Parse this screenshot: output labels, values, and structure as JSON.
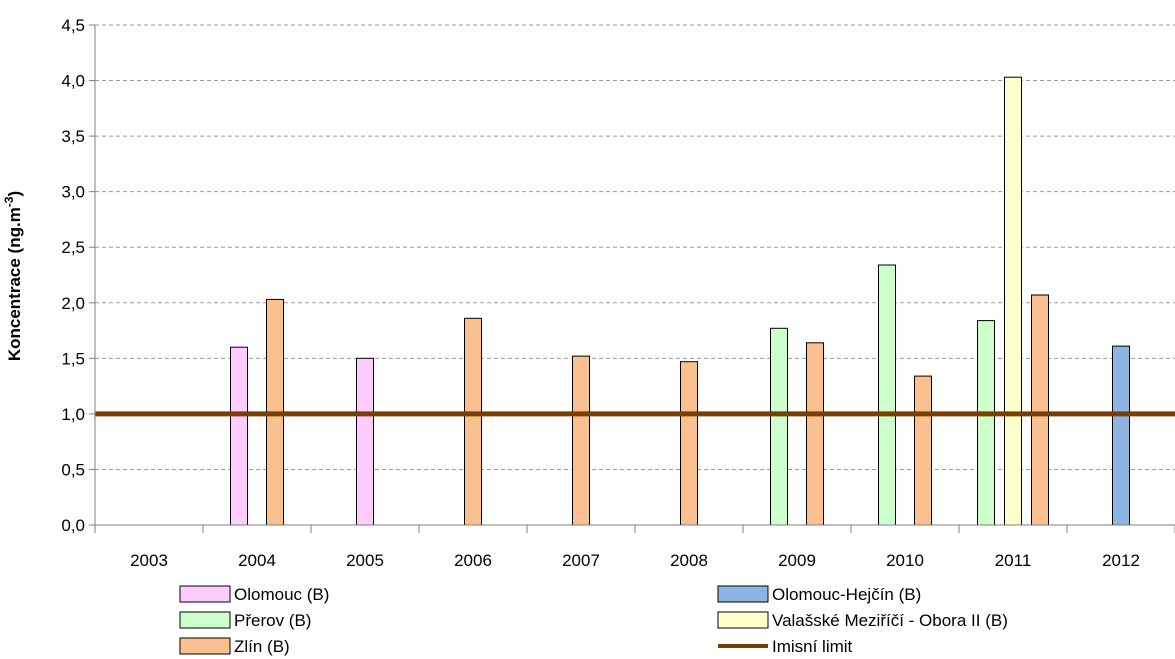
{
  "chart_data": {
    "type": "bar",
    "title": "",
    "xlabel": "",
    "ylabel": "Koncentrace (ng.m",
    "ylabel_sup": "-3",
    "ylabel_close": ")",
    "ylim": [
      0,
      4.5
    ],
    "yticks": [
      0,
      0.5,
      1.0,
      1.5,
      2.0,
      2.5,
      3.0,
      3.5,
      4.0,
      4.5
    ],
    "ytick_labels": [
      "0,0",
      "0,5",
      "1,0",
      "1,5",
      "2,0",
      "2,5",
      "3,0",
      "3,5",
      "4,0",
      "4,5"
    ],
    "grid": "horizontal dashed",
    "legend_position": "bottom",
    "categories": [
      "2003",
      "2004",
      "2005",
      "2006",
      "2007",
      "2008",
      "2009",
      "2010",
      "2011",
      "2012"
    ],
    "series": [
      {
        "name": "Olomouc (B)",
        "color": "#ffccff",
        "values": [
          null,
          1.6,
          1.5,
          null,
          null,
          null,
          null,
          null,
          null,
          null
        ]
      },
      {
        "name": "Olomouc-Hejčín (B)",
        "color": "#8db4e2",
        "values": [
          null,
          null,
          null,
          null,
          null,
          null,
          null,
          null,
          null,
          1.61
        ]
      },
      {
        "name": "Přerov (B)",
        "color": "#ccffcc",
        "values": [
          null,
          null,
          null,
          null,
          null,
          null,
          1.77,
          2.34,
          1.84,
          null
        ]
      },
      {
        "name": "Valašské Meziříčí - Obora II (B)",
        "color": "#ffffcc",
        "values": [
          null,
          null,
          null,
          null,
          null,
          null,
          null,
          null,
          4.03,
          null
        ]
      },
      {
        "name": "Zlín (B)",
        "color": "#fac090",
        "values": [
          null,
          2.03,
          null,
          1.86,
          1.52,
          1.47,
          1.64,
          1.34,
          2.07,
          null
        ]
      }
    ],
    "limit": {
      "name": "Imisní limit",
      "value": 1.0,
      "color": "#7a3e00"
    }
  }
}
